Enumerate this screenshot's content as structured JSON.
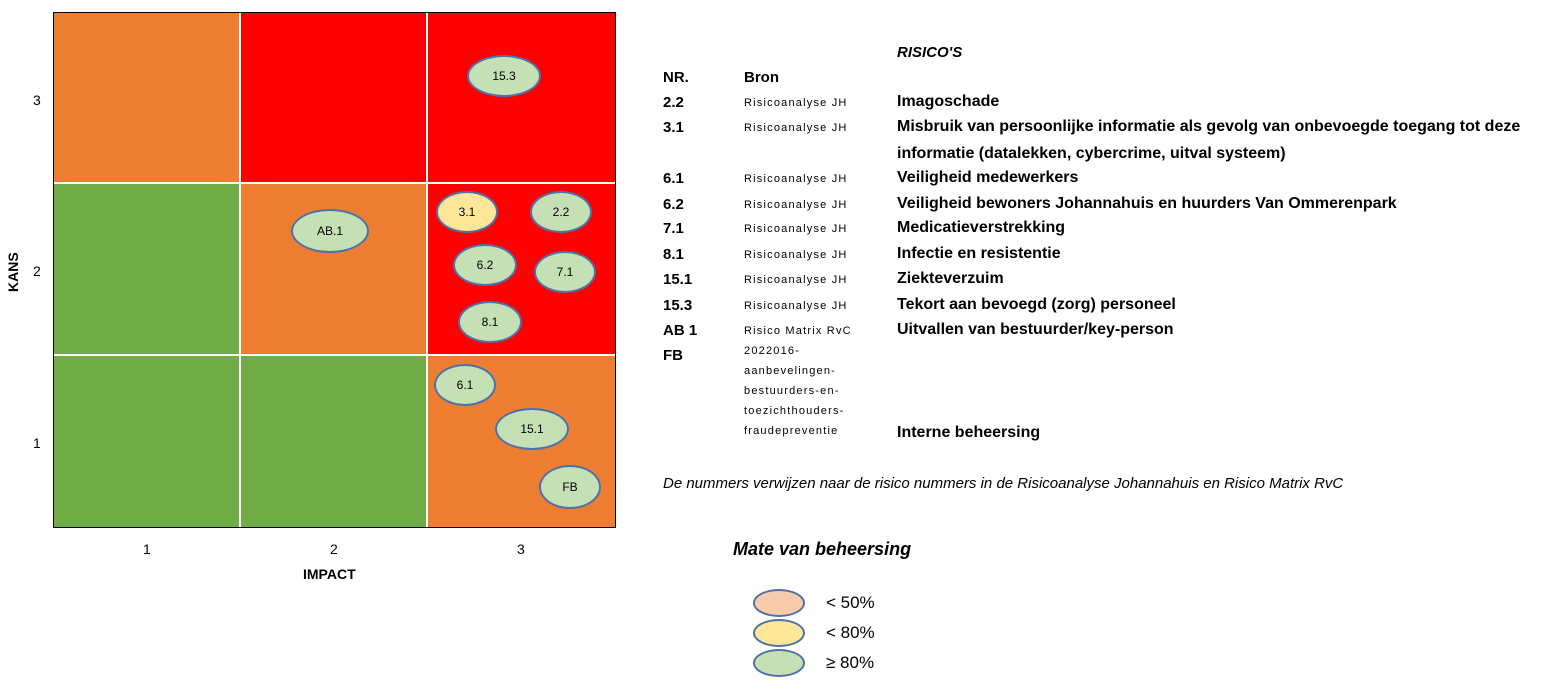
{
  "chart_data": {
    "type": "risk-matrix",
    "xlabel": "IMPACT",
    "ylabel": "KANS",
    "x_ticks": [
      "1",
      "2",
      "3"
    ],
    "y_ticks": [
      "1",
      "2",
      "3"
    ],
    "cells": [
      {
        "impact": 1,
        "kans": 3,
        "color": "#ed7d31"
      },
      {
        "impact": 2,
        "kans": 3,
        "color": "#ff0000"
      },
      {
        "impact": 3,
        "kans": 3,
        "color": "#ff0000"
      },
      {
        "impact": 1,
        "kans": 2,
        "color": "#70ad47"
      },
      {
        "impact": 2,
        "kans": 2,
        "color": "#ed7d31"
      },
      {
        "impact": 3,
        "kans": 2,
        "color": "#ff0000"
      },
      {
        "impact": 1,
        "kans": 1,
        "color": "#70ad47"
      },
      {
        "impact": 2,
        "kans": 1,
        "color": "#70ad47"
      },
      {
        "impact": 3,
        "kans": 1,
        "color": "#ed7d31"
      }
    ],
    "points": [
      {
        "label": "15.3",
        "impact": 3,
        "kans": 3,
        "control": "green"
      },
      {
        "label": "3.1",
        "impact": 3,
        "kans": 2,
        "control": "yellow"
      },
      {
        "label": "2.2",
        "impact": 3,
        "kans": 2,
        "control": "green"
      },
      {
        "label": "AB.1",
        "impact": 2,
        "kans": 2,
        "control": "green"
      },
      {
        "label": "6.2",
        "impact": 3,
        "kans": 2,
        "control": "green"
      },
      {
        "label": "7.1",
        "impact": 3,
        "kans": 2,
        "control": "green"
      },
      {
        "label": "8.1",
        "impact": 3,
        "kans": 2,
        "control": "green"
      },
      {
        "label": "6.1",
        "impact": 3,
        "kans": 1,
        "control": "green"
      },
      {
        "label": "15.1",
        "impact": 3,
        "kans": 1,
        "control": "green"
      },
      {
        "label": "FB",
        "impact": 3,
        "kans": 1,
        "control": "green"
      }
    ],
    "control_colors": {
      "orange": "#f8cbad",
      "yellow": "#ffe699",
      "green": "#c5e0b4"
    }
  },
  "risks": {
    "title": "RISICO'S",
    "header_nr": "NR.",
    "header_bron": "Bron",
    "rows": [
      {
        "nr": "2.2",
        "bron": "Risicoanalyse JH",
        "risico": "Imagoschade"
      },
      {
        "nr": "3.1",
        "bron": "Risicoanalyse JH",
        "risico": "Misbruik van persoonlijke informatie als gevolg van onbevoegde toegang tot deze",
        "risico_2": "informatie (datalekken, cybercrime, uitval systeem)"
      },
      {
        "nr": "6.1",
        "bron": "Risicoanalyse JH",
        "risico": "Veiligheid medewerkers"
      },
      {
        "nr": "6.2",
        "bron": "Risicoanalyse JH",
        "risico": "Veiligheid bewoners Johannahuis en huurders Van Ommerenpark"
      },
      {
        "nr": "7.1",
        "bron": "Risicoanalyse JH",
        "risico": "Medicatieverstrekking"
      },
      {
        "nr": "8.1",
        "bron": "Risicoanalyse JH",
        "risico": "Infectie en resistentie"
      },
      {
        "nr": "15.1",
        "bron": "Risicoanalyse JH",
        "risico": "Ziekteverzuim"
      },
      {
        "nr": "15.3",
        "bron": "Risicoanalyse JH",
        "risico": "Tekort aan bevoegd (zorg) personeel"
      },
      {
        "nr": "AB 1",
        "bron": "Risico Matrix RvC",
        "risico": "Uitvallen van bestuurder/key-person"
      },
      {
        "nr": "FB",
        "bron_lines": [
          "2022016-",
          "aanbevelingen-",
          "bestuurders-en-",
          "toezichthouders-",
          "fraudepreventie"
        ],
        "risico": "Interne beheersing"
      }
    ],
    "note": "De nummers verwijzen naar de risico nummers in de Risicoanalyse Johannahuis en Risico Matrix RvC"
  },
  "legend": {
    "title": "Mate van beheersing",
    "items": [
      {
        "label": "< 50%",
        "color": "#f8cbad"
      },
      {
        "label": "< 80%",
        "color": "#ffe699"
      },
      {
        "label": "≥ 80%",
        "color": "#c5e0b4"
      }
    ]
  }
}
